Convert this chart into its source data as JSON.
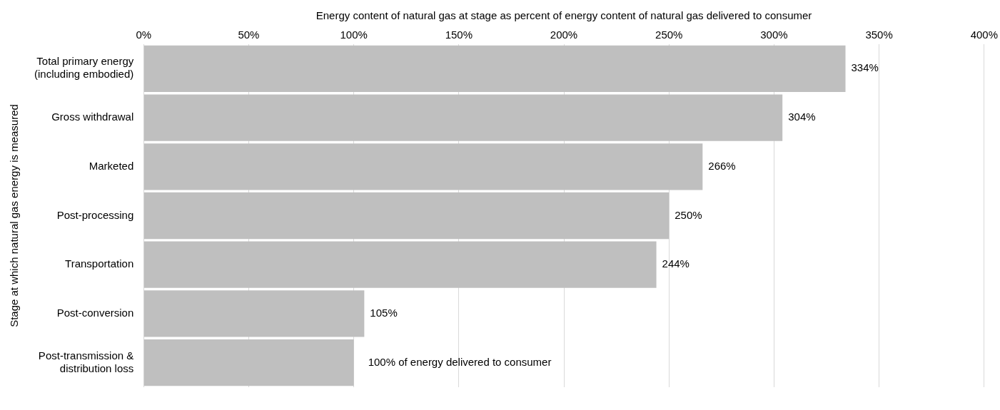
{
  "chart_data": {
    "type": "bar",
    "orientation": "horizontal",
    "xlabel": "Energy content of natural gas at stage as percent of energy content of natural gas delivered to consumer",
    "ylabel": "Stage at which natural gas energy is measured",
    "categories": [
      "Total primary energy (including embodied)",
      "Gross withdrawal",
      "Marketed",
      "Post-processing",
      "Transportation",
      "Post-conversion",
      "Post-transmission & distribution loss"
    ],
    "values": [
      334,
      304,
      266,
      250,
      244,
      105,
      100
    ],
    "value_labels": [
      "334%",
      "304%",
      "266%",
      "250%",
      "244%",
      "105%",
      "100% of energy delivered to consumer"
    ],
    "color": "#bfbfbf",
    "xlim": [
      0,
      400
    ],
    "xticks": [
      {
        "value": 0,
        "label": "0%"
      },
      {
        "value": 50,
        "label": "50%"
      },
      {
        "value": 100,
        "label": "100%"
      },
      {
        "value": 150,
        "label": "150%"
      },
      {
        "value": 200,
        "label": "200%"
      },
      {
        "value": 250,
        "label": "250%"
      },
      {
        "value": 300,
        "label": "300%"
      },
      {
        "value": 350,
        "label": "350%"
      },
      {
        "value": 400,
        "label": "400%"
      }
    ],
    "grid": "x",
    "legend": false
  }
}
